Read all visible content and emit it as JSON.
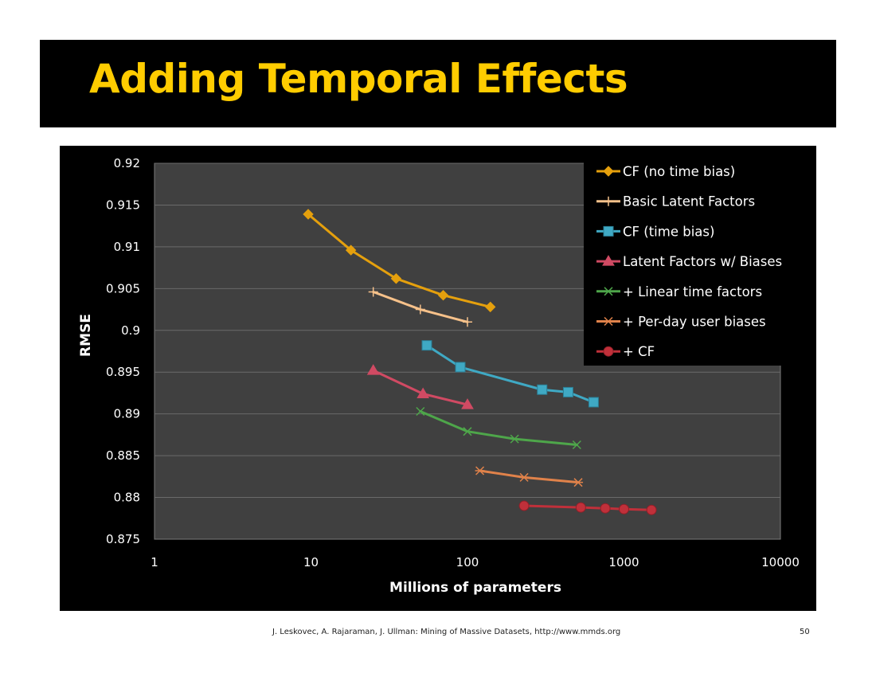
{
  "slide": {
    "title": "Adding Temporal Effects",
    "footer": "J. Leskovec, A. Rajaraman, J. Ullman: Mining of Massive Datasets, http://www.mmds.org",
    "page_number": "50"
  },
  "colors": {
    "title": "#ffcc00",
    "plot_background": "#404040",
    "panel_background": "#000000",
    "gridline": "#6a6a6a"
  },
  "chart_data": {
    "type": "line",
    "title": "",
    "xlabel": "Millions of parameters",
    "ylabel": "RMSE",
    "x_scale": "log",
    "xlim": [
      1,
      10000
    ],
    "ylim": [
      0.875,
      0.92
    ],
    "x_ticks": [
      "1",
      "10",
      "100",
      "1000",
      "10000"
    ],
    "y_ticks": [
      "0.875",
      "0.88",
      "0.885",
      "0.89",
      "0.895",
      "0.9",
      "0.905",
      "0.91",
      "0.915",
      "0.92"
    ],
    "grid": "horizontal",
    "legend_position": "top-right",
    "series": [
      {
        "name": "CF (no time bias)",
        "color": "#e5a00d",
        "marker": "diamond",
        "x": [
          9.6,
          18,
          35,
          70,
          140
        ],
        "y": [
          0.9139,
          0.9096,
          0.9062,
          0.9042,
          0.9028
        ]
      },
      {
        "name": "Basic Latent Factors",
        "color": "#f6c18a",
        "marker": "plus",
        "x": [
          25,
          50,
          100
        ],
        "y": [
          0.9046,
          0.9025,
          0.901
        ]
      },
      {
        "name": "CF (time bias)",
        "color": "#3fa9c4",
        "marker": "square",
        "x": [
          55,
          90,
          300,
          440,
          640
        ],
        "y": [
          0.8982,
          0.8956,
          0.8929,
          0.8926,
          0.8914
        ]
      },
      {
        "name": "Latent Factors w/ Biases",
        "color": "#d04a63",
        "marker": "triangle",
        "x": [
          25,
          52,
          100
        ],
        "y": [
          0.8952,
          0.8924,
          0.8911
        ]
      },
      {
        "name": "+ Linear time factors",
        "color": "#4ea64a",
        "marker": "x",
        "x": [
          50,
          100,
          200,
          500
        ],
        "y": [
          0.8903,
          0.8879,
          0.887,
          0.8863
        ]
      },
      {
        "name": "+ Per-day user biases",
        "color": "#e0824a",
        "marker": "asterisk",
        "x": [
          120,
          230,
          510
        ],
        "y": [
          0.8832,
          0.8824,
          0.8818
        ]
      },
      {
        "name": "+ CF",
        "color": "#c0303a",
        "marker": "circle",
        "x": [
          230,
          530,
          760,
          1000,
          1500
        ],
        "y": [
          0.879,
          0.8788,
          0.8787,
          0.8786,
          0.8785
        ]
      }
    ]
  }
}
